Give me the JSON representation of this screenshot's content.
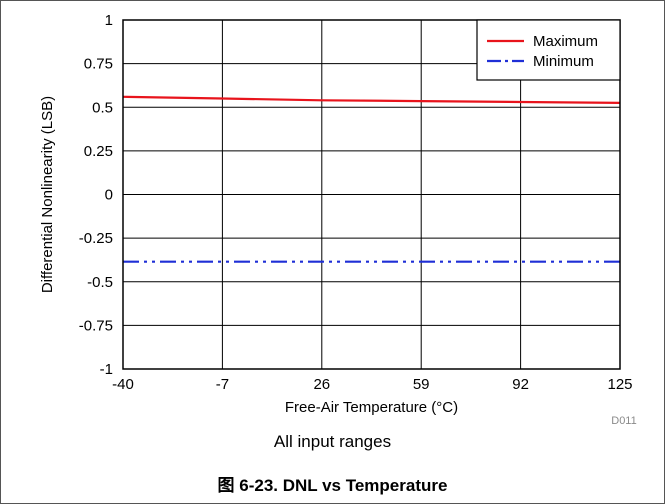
{
  "chart_data": {
    "type": "line",
    "xlabel": "Free-Air Temperature (°C)",
    "ylabel": "Differential Nonlinearity (LSB)",
    "xlim": [
      -40,
      125
    ],
    "ylim": [
      -1,
      1
    ],
    "x_ticks": [
      -40,
      -7,
      26,
      59,
      92,
      125
    ],
    "x_tick_labels": [
      "-40",
      "-7",
      "26",
      "59",
      "92",
      "125"
    ],
    "y_ticks": [
      -1,
      -0.75,
      -0.5,
      -0.25,
      0,
      0.25,
      0.5,
      0.75,
      1
    ],
    "y_tick_labels": [
      "-1",
      "-0.75",
      "-0.5",
      "-0.25",
      "0",
      "0.25",
      "0.5",
      "0.75",
      "1"
    ],
    "grid": true,
    "legend_position": "top-right",
    "series": [
      {
        "name": "Maximum",
        "color": "#e8141c",
        "style": "solid",
        "x": [
          -40,
          -7,
          26,
          59,
          92,
          125
        ],
        "y": [
          0.56,
          0.55,
          0.54,
          0.535,
          0.53,
          0.525
        ]
      },
      {
        "name": "Minimum",
        "color": "#1f2fd6",
        "style": "dash-dot-dot",
        "x": [
          -40,
          -7,
          26,
          59,
          92,
          125
        ],
        "y": [
          -0.385,
          -0.385,
          -0.385,
          -0.385,
          -0.385,
          -0.385
        ]
      }
    ],
    "code_label": "D011"
  },
  "note": "All input ranges",
  "caption": "图 6-23. DNL vs Temperature"
}
